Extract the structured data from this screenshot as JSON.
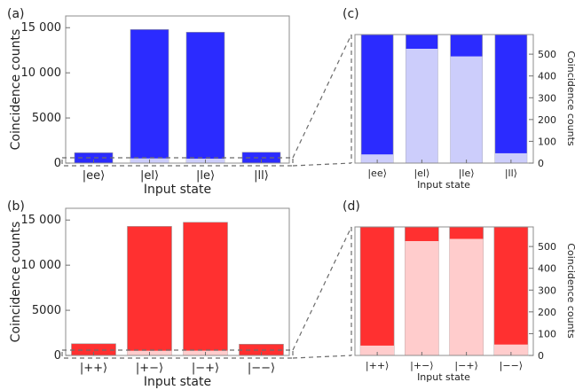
{
  "colors": {
    "blue": "#2b2bff",
    "blue_light": "#cccdfb",
    "red": "#ff3030",
    "red_light": "#ffcccc"
  },
  "chart_data": [
    {
      "panel": "(a)",
      "type": "bar",
      "categories": [
        "|ee⟩",
        "|el⟩",
        "|le⟩",
        "|ll⟩"
      ],
      "series": [
        {
          "values": [
            1150,
            14800,
            14500,
            1200
          ],
          "color": "#2b2bff"
        },
        {
          "values": [
            40,
            525,
            490,
            45
          ],
          "color": "#cccdfb"
        }
      ],
      "xlabel": "Input state",
      "ylabel": "Coincidence counts",
      "ylim": [
        0,
        16300
      ],
      "yticks": [
        0,
        5000,
        10000,
        15000
      ],
      "ytick_labels": [
        "0",
        "5000",
        "10 000",
        "15 000"
      ]
    },
    {
      "panel": "(c)",
      "type": "bar",
      "categories": [
        "|ee⟩",
        "|el⟩",
        "|le⟩",
        "|ll⟩"
      ],
      "series": [
        {
          "values": [
            1150,
            14800,
            14500,
            1200
          ],
          "color": "#2b2bff"
        },
        {
          "values": [
            40,
            525,
            490,
            45
          ],
          "color": "#cccdfb"
        }
      ],
      "xlabel": "Input state",
      "ylabel": "Coincidence counts",
      "ylim": [
        0,
        590
      ],
      "yticks": [
        0,
        100,
        200,
        300,
        400,
        500
      ],
      "ytick_labels": [
        "0",
        "100",
        "200",
        "300",
        "400",
        "500"
      ]
    },
    {
      "panel": "(b)",
      "type": "bar",
      "categories": [
        "|++⟩",
        "|+−⟩",
        "|−+⟩",
        "|−−⟩"
      ],
      "series": [
        {
          "values": [
            1300,
            14300,
            14750,
            1250
          ],
          "color": "#ff3030"
        },
        {
          "values": [
            45,
            525,
            535,
            50
          ],
          "color": "#ffcccc"
        }
      ],
      "xlabel": "Input state",
      "ylabel": "Coincidence counts",
      "ylim": [
        0,
        16300
      ],
      "yticks": [
        0,
        5000,
        10000,
        15000
      ],
      "ytick_labels": [
        "0",
        "5000",
        "10 000",
        "15 000"
      ]
    },
    {
      "panel": "(d)",
      "type": "bar",
      "categories": [
        "|++⟩",
        "|+−⟩",
        "|−+⟩",
        "|−−⟩"
      ],
      "series": [
        {
          "values": [
            1300,
            14300,
            14750,
            1250
          ],
          "color": "#ff3030"
        },
        {
          "values": [
            45,
            525,
            535,
            50
          ],
          "color": "#ffcccc"
        }
      ],
      "xlabel": "Input state",
      "ylabel": "Coincidence counts",
      "ylim": [
        0,
        590
      ],
      "yticks": [
        0,
        100,
        200,
        300,
        400,
        500
      ],
      "ytick_labels": [
        "0",
        "100",
        "200",
        "300",
        "400",
        "500"
      ]
    }
  ]
}
